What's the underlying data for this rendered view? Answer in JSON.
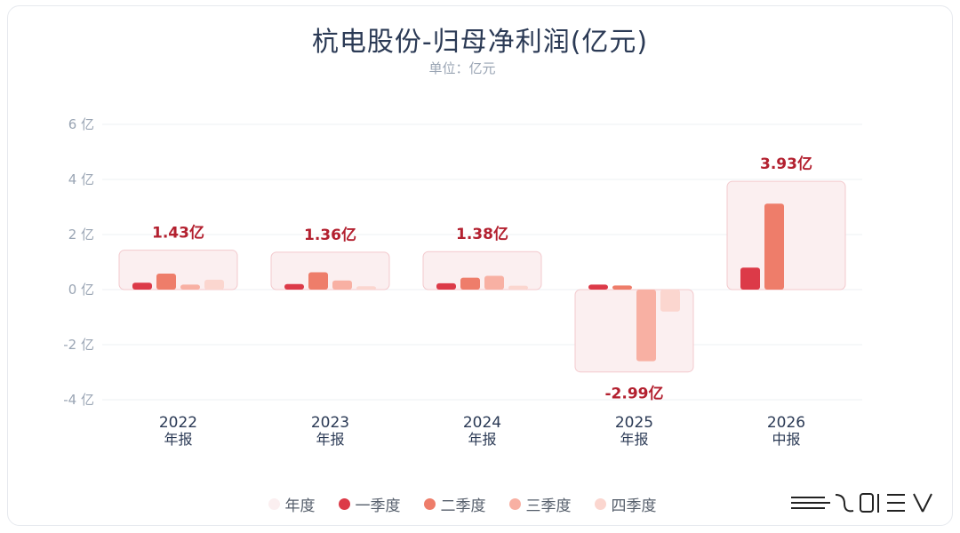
{
  "header": {
    "title": "杭电股份-归母净利润(亿元)",
    "subtitle": "单位：亿元"
  },
  "legend": [
    {
      "label": "年度",
      "color": "#fbeff0"
    },
    {
      "label": "一季度",
      "color": "#dc3a48"
    },
    {
      "label": "二季度",
      "color": "#ee7d6a"
    },
    {
      "label": "三季度",
      "color": "#f8b0a3"
    },
    {
      "label": "四季度",
      "color": "#fbd6cf"
    }
  ],
  "chart_data": {
    "type": "bar",
    "title": "杭电股份-归母净利润(亿元)",
    "subtitle": "单位：亿元",
    "y_unit_suffix": " 亿",
    "ylim": [
      -4,
      6
    ],
    "yticks": [
      -4,
      -2,
      0,
      2,
      4,
      6
    ],
    "grid": true,
    "legend_position": "bottom-center",
    "categories": [
      {
        "year": "2022",
        "period": "年报"
      },
      {
        "year": "2023",
        "period": "年报"
      },
      {
        "year": "2024",
        "period": "年报"
      },
      {
        "year": "2025",
        "period": "年报"
      },
      {
        "year": "2026",
        "period": "中报"
      }
    ],
    "annual_totals": [
      1.43,
      1.36,
      1.38,
      -2.99,
      3.93
    ],
    "annual_labels": [
      "1.43亿",
      "1.36亿",
      "1.38亿",
      "-2.99亿",
      "3.93亿"
    ],
    "series": [
      {
        "name": "一季度",
        "color": "#dc3a48",
        "values": [
          0.25,
          0.2,
          0.23,
          0.18,
          0.8
        ]
      },
      {
        "name": "二季度",
        "color": "#ee7d6a",
        "values": [
          0.58,
          0.63,
          0.43,
          0.15,
          3.12
        ]
      },
      {
        "name": "三季度",
        "color": "#f8b0a3",
        "values": [
          0.18,
          0.33,
          0.5,
          -2.6,
          null
        ]
      },
      {
        "name": "四季度",
        "color": "#fbd6cf",
        "values": [
          0.36,
          0.12,
          0.14,
          -0.8,
          null
        ]
      }
    ],
    "annual_box_color": "#fbeff0",
    "annual_box_border": "#f3c9cd",
    "annual_label_color": "#b3202f"
  },
  "watermark": {
    "icon": "brand-logo"
  }
}
